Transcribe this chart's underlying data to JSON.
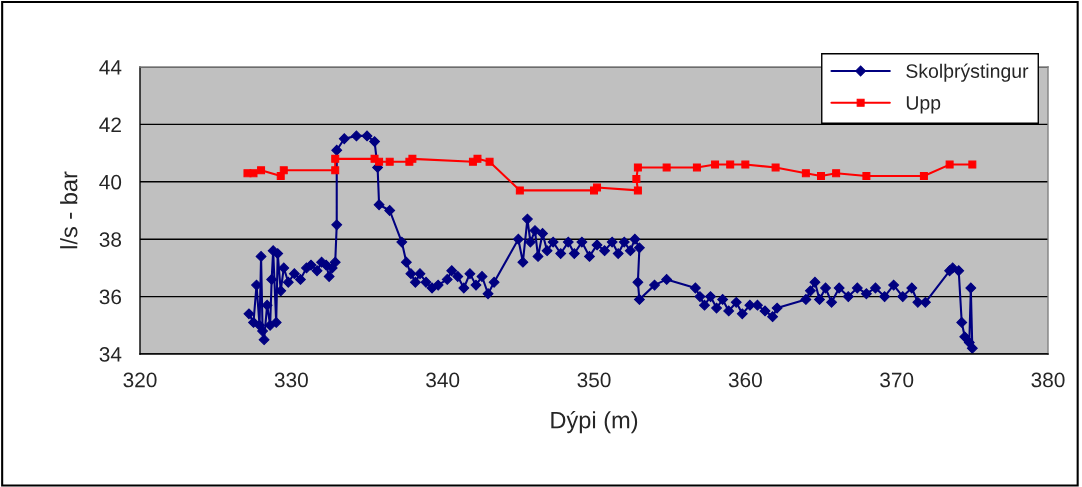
{
  "chart_data": {
    "type": "line",
    "xlabel": "Dýpi (m)",
    "ylabel": "l/s - bar",
    "xlim": [
      320,
      380
    ],
    "xticks": [
      320,
      330,
      340,
      350,
      360,
      370,
      380
    ],
    "ylim": [
      34,
      44
    ],
    "yticks": [
      34,
      36,
      38,
      40,
      42,
      44
    ],
    "grid": "y",
    "legend": "top right",
    "series": [
      {
        "name": "Skolþrýstingur",
        "color": "#000080",
        "marker": "diamond",
        "x": [
          327.2,
          327.5,
          327.7,
          327.9,
          328.0,
          328.1,
          328.2,
          328.4,
          328.6,
          328.7,
          328.8,
          329.0,
          329.1,
          329.3,
          329.5,
          329.8,
          330.2,
          330.6,
          331.0,
          331.3,
          331.7,
          332.0,
          332.3,
          332.5,
          332.7,
          332.9,
          333.0,
          333.0,
          333.5,
          334.3,
          335.0,
          335.5,
          335.7,
          335.8,
          336.5,
          337.3,
          337.6,
          337.9,
          338.2,
          338.5,
          338.9,
          339.3,
          339.7,
          340.3,
          340.6,
          341.0,
          341.4,
          341.8,
          342.2,
          342.6,
          343.0,
          343.4,
          345.0,
          345.3,
          345.6,
          345.8,
          346.1,
          346.3,
          346.6,
          346.9,
          347.3,
          347.8,
          348.3,
          348.7,
          349.2,
          349.7,
          350.2,
          350.7,
          351.2,
          351.6,
          352.0,
          352.4,
          352.7,
          353.0,
          352.9,
          353.0,
          354.0,
          354.8,
          356.7,
          357.0,
          357.3,
          357.7,
          358.1,
          358.5,
          358.9,
          359.4,
          359.8,
          360.3,
          360.8,
          361.3,
          361.8,
          362.1,
          364.0,
          364.3,
          364.6,
          364.9,
          365.3,
          365.7,
          366.2,
          366.8,
          367.4,
          368.0,
          368.6,
          369.2,
          369.8,
          370.4,
          371.0,
          371.4,
          371.9,
          373.5,
          373.7,
          374.1,
          374.3,
          374.5,
          374.8,
          374.9,
          375.0
        ],
        "values": [
          35.4,
          35.1,
          36.4,
          35.0,
          37.4,
          34.8,
          34.5,
          35.7,
          35.0,
          36.6,
          37.6,
          35.1,
          37.5,
          36.2,
          37.0,
          36.5,
          36.8,
          36.6,
          37.0,
          37.1,
          36.9,
          37.2,
          37.1,
          36.7,
          37.0,
          37.2,
          38.5,
          41.1,
          41.5,
          41.6,
          41.6,
          41.4,
          40.5,
          39.2,
          39.0,
          37.9,
          37.2,
          36.8,
          36.5,
          36.8,
          36.5,
          36.3,
          36.4,
          36.6,
          36.9,
          36.7,
          36.3,
          36.8,
          36.4,
          36.7,
          36.1,
          36.5,
          38.0,
          37.2,
          38.7,
          37.9,
          38.3,
          37.4,
          38.2,
          37.6,
          37.9,
          37.5,
          37.9,
          37.5,
          37.9,
          37.4,
          37.8,
          37.6,
          37.9,
          37.5,
          37.9,
          37.6,
          38.0,
          37.7,
          36.5,
          35.9,
          36.4,
          36.6,
          36.3,
          36.0,
          35.7,
          36.0,
          35.6,
          35.9,
          35.5,
          35.8,
          35.4,
          35.7,
          35.7,
          35.5,
          35.3,
          35.6,
          35.9,
          36.2,
          36.5,
          35.9,
          36.3,
          35.8,
          36.3,
          36.0,
          36.3,
          36.1,
          36.3,
          36.0,
          36.4,
          36.0,
          36.3,
          35.8,
          35.8,
          36.9,
          37.0,
          36.9,
          35.1,
          34.6,
          34.4,
          36.3,
          34.2
        ]
      },
      {
        "name": "Upp",
        "color": "#ff0000",
        "marker": "square",
        "x": [
          327.1,
          327.5,
          328.0,
          329.3,
          329.5,
          332.9,
          332.9,
          335.5,
          335.8,
          336.5,
          337.8,
          338.0,
          342.0,
          342.3,
          343.1,
          345.1,
          350.0,
          350.2,
          352.9,
          352.8,
          352.9,
          354.8,
          356.8,
          358.0,
          359.0,
          360.0,
          362.0,
          364.0,
          365.0,
          366.0,
          368.0,
          371.8,
          373.5,
          375.0
        ],
        "values": [
          40.3,
          40.3,
          40.4,
          40.2,
          40.4,
          40.4,
          40.8,
          40.8,
          40.7,
          40.7,
          40.7,
          40.8,
          40.7,
          40.8,
          40.7,
          39.7,
          39.7,
          39.8,
          39.7,
          40.1,
          40.5,
          40.5,
          40.5,
          40.6,
          40.6,
          40.6,
          40.5,
          40.3,
          40.2,
          40.3,
          40.2,
          40.2,
          40.6,
          40.6
        ]
      }
    ]
  }
}
